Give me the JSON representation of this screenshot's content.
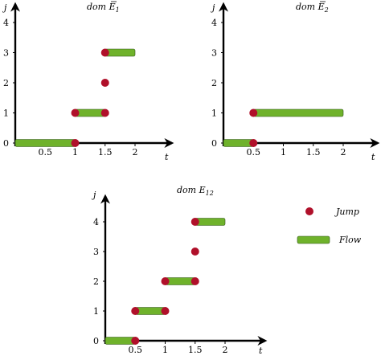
{
  "colors": {
    "jump": "#b0102a",
    "flow": "#6fb22b",
    "flow_outline": "#2d5016",
    "axis": "#000000"
  },
  "panels": [
    {
      "title_main": "dom ",
      "title_sym": "E",
      "title_sub": "1",
      "title_overbar": true,
      "ylabel": "j",
      "xlabel": "t",
      "xticks": [
        "0.5",
        "1",
        "1.5",
        "2"
      ],
      "yticks": [
        "0",
        "1",
        "2",
        "3",
        "4"
      ],
      "flows": [
        {
          "t_start": 0,
          "t_end": 1,
          "j": 0
        },
        {
          "t_start": 1,
          "t_end": 1.5,
          "j": 1
        },
        {
          "t_start": 1.5,
          "t_end": 2,
          "j": 3
        }
      ],
      "jumps": [
        {
          "t": 1,
          "j": 0
        },
        {
          "t": 1,
          "j": 1
        },
        {
          "t": 1.5,
          "j": 1
        },
        {
          "t": 1.5,
          "j": 2
        },
        {
          "t": 1.5,
          "j": 3
        }
      ]
    },
    {
      "title_main": "dom ",
      "title_sym": "E",
      "title_sub": "2",
      "title_overbar": true,
      "ylabel": "j",
      "xlabel": "t",
      "xticks": [
        "0.5",
        "1",
        "1.5",
        "2"
      ],
      "yticks": [
        "0",
        "1",
        "2",
        "3",
        "4"
      ],
      "flows": [
        {
          "t_start": 0,
          "t_end": 0.5,
          "j": 0
        },
        {
          "t_start": 0.5,
          "t_end": 2,
          "j": 1
        }
      ],
      "jumps": [
        {
          "t": 0.5,
          "j": 0
        },
        {
          "t": 0.5,
          "j": 1
        }
      ]
    },
    {
      "title_main": "dom ",
      "title_sym": "E",
      "title_sub": "12",
      "title_overbar": false,
      "ylabel": "j",
      "xlabel": "t",
      "xticks": [
        "0.5",
        "1",
        "1.5",
        "2"
      ],
      "yticks": [
        "0",
        "1",
        "2",
        "3",
        "4"
      ],
      "flows": [
        {
          "t_start": 0,
          "t_end": 0.5,
          "j": 0
        },
        {
          "t_start": 0.5,
          "t_end": 1,
          "j": 1
        },
        {
          "t_start": 1,
          "t_end": 1.5,
          "j": 2
        },
        {
          "t_start": 1.5,
          "t_end": 2,
          "j": 4
        }
      ],
      "jumps": [
        {
          "t": 0.5,
          "j": 0
        },
        {
          "t": 0.5,
          "j": 1
        },
        {
          "t": 1,
          "j": 1
        },
        {
          "t": 1,
          "j": 2
        },
        {
          "t": 1.5,
          "j": 2
        },
        {
          "t": 1.5,
          "j": 3
        },
        {
          "t": 1.5,
          "j": 4
        }
      ]
    }
  ],
  "legend": {
    "jump_label": "Jump",
    "flow_label": "Flow"
  }
}
